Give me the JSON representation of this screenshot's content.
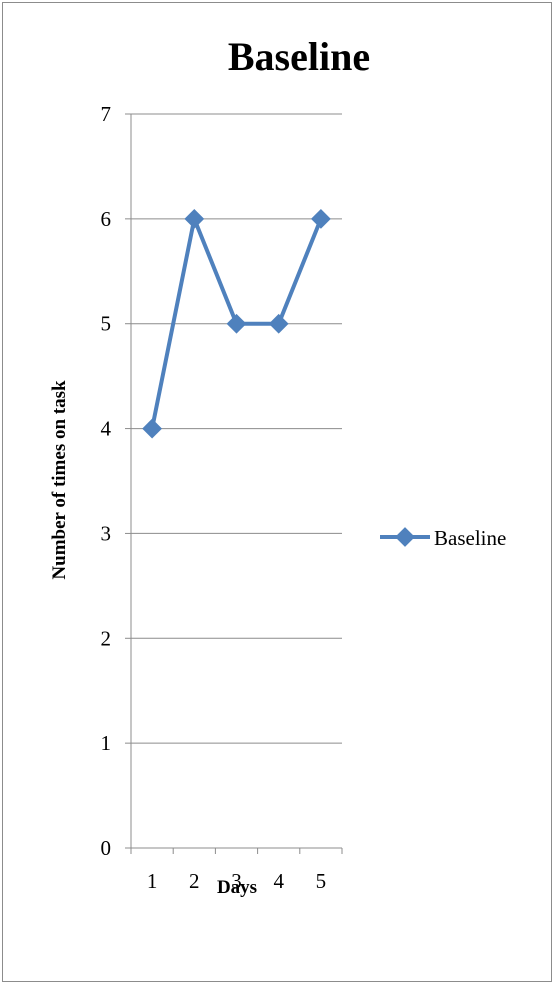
{
  "chart_data": {
    "type": "line",
    "title": "Baseline",
    "xlabel": "Days",
    "ylabel": "Number of times on task",
    "categories": [
      "1",
      "2",
      "3",
      "4",
      "5"
    ],
    "series": [
      {
        "name": "Baseline",
        "values": [
          4,
          6,
          5,
          5,
          6
        ]
      }
    ],
    "ylim": [
      0,
      7
    ],
    "yticks": [
      0,
      1,
      2,
      3,
      4,
      5,
      6,
      7
    ],
    "grid": true,
    "legend": "right",
    "colors": {
      "series": "#4f81bd",
      "grid": "#8c8c8c",
      "axis": "#8c8c8c"
    }
  }
}
